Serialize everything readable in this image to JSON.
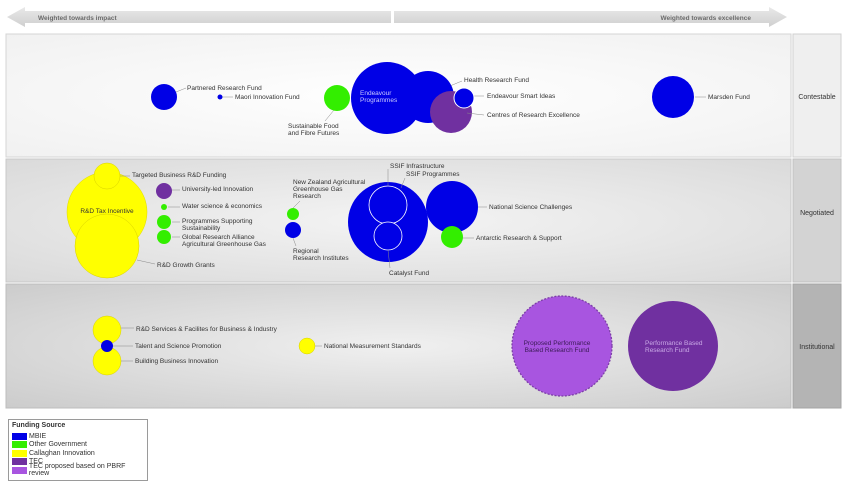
{
  "header": {
    "left_label": "Weighted towards impact",
    "right_label": "Weighted towards excellence"
  },
  "rows": [
    {
      "key": "contestable",
      "label": "Contestable"
    },
    {
      "key": "negotiated",
      "label": "Negotiated"
    },
    {
      "key": "institutional",
      "label": "Institutional"
    }
  ],
  "colors": {
    "mbie": "#0000e6",
    "other_gov": "#33ee00",
    "callaghan": "#ffff00",
    "tec": "#7030a0",
    "tec_proposed": "#a855e0"
  },
  "legend": {
    "title": "Funding Source",
    "items": [
      {
        "label": "MBIE",
        "color": "#0000e6"
      },
      {
        "label": "Other Government",
        "color": "#33ee00"
      },
      {
        "label": "Callaghan Innovation",
        "color": "#ffff00"
      },
      {
        "label": "TEC",
        "color": "#7030a0"
      },
      {
        "label": "TEC proposed based on PBRF review",
        "color": "#a855e0"
      }
    ]
  },
  "funds": {
    "partnered_research_fund": "Partnered Research Fund",
    "maori_innovation_fund": "Maori Innovation Fund",
    "sustainable_food_1": "Sustainable Food",
    "sustainable_food_2": "and Fibre Futures",
    "endeavour_programmes_1": "Endeavour",
    "endeavour_programmes_2": "Programmes",
    "health_research_fund": "Health Research Fund",
    "endeavour_smart_ideas": "Endeavour Smart Ideas",
    "centres_of_research_excellence": "Centres of Research Excellence",
    "marsden_fund": "Marsden Fund",
    "targeted_business_rd": "Targeted Business R&D Funding",
    "rd_tax_incentive": "R&D Tax Incentive",
    "university_led_innovation": "University-led Innovation",
    "water_science": "Water science & economics",
    "programmes_supporting_1": "Programmes Supporting",
    "programmes_supporting_2": "Sustainability",
    "global_research_1": "Global Research Alliance",
    "global_research_2": "Agricultural Greenhouse Gas",
    "rd_growth_grants": "R&D Growth Grants",
    "nz_agri_1": "New Zealand Agricultural",
    "nz_agri_2": "Greenhouse Gas",
    "nz_agri_3": "Research",
    "regional_1": "Regional",
    "regional_2": "Research Institutes",
    "ssif_infrastructure": "SSIF Infrastructure",
    "ssif_programmes": "SSIF Programmes",
    "catalyst_fund": "Catalyst Fund",
    "national_science_challenges": "National Science Challenges",
    "antarctic": "Antarctic Research & Support",
    "rd_services": "R&D Services & Facilites for Business & Industry",
    "talent_science": "Talent and Science Promotion",
    "building_business": "Building Business Innovation",
    "national_measurement": "National Measurement Standards",
    "proposed_pbrf_1": "Proposed Performance",
    "proposed_pbrf_2": "Based Research Fund",
    "pbrf_1": "Performance Based",
    "pbrf_2": "Research Fund"
  }
}
